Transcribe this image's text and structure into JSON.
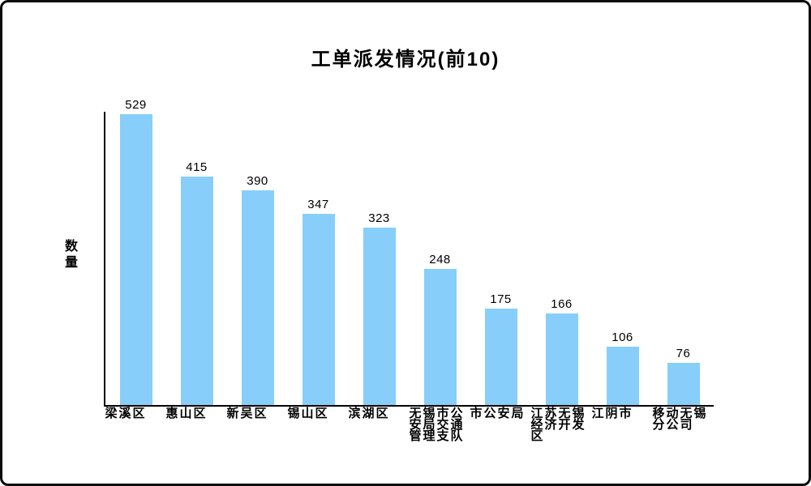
{
  "frame": {
    "background": "#ffffff",
    "border_color": "#0a0a0a"
  },
  "chart_data": {
    "type": "bar",
    "title": "工单派发情况(前10)",
    "ylabel": "数量",
    "xlabel": "",
    "categories": [
      "梁溪区",
      "惠山区",
      "新吴区",
      "锡山区",
      "滨湖区",
      "无锡市公安局交通管理支队",
      "市公安局",
      "江苏无锡经济开发区",
      "江阴市",
      "移动无锡分公司"
    ],
    "values": [
      529,
      415,
      390,
      347,
      323,
      248,
      175,
      166,
      106,
      76
    ],
    "value_labels_shown": true,
    "bar_color": "#87CEFA",
    "axis_color": "#000000",
    "text_color": "#000000",
    "ylim": [
      0,
      530
    ],
    "grid": false,
    "legend": "none"
  }
}
